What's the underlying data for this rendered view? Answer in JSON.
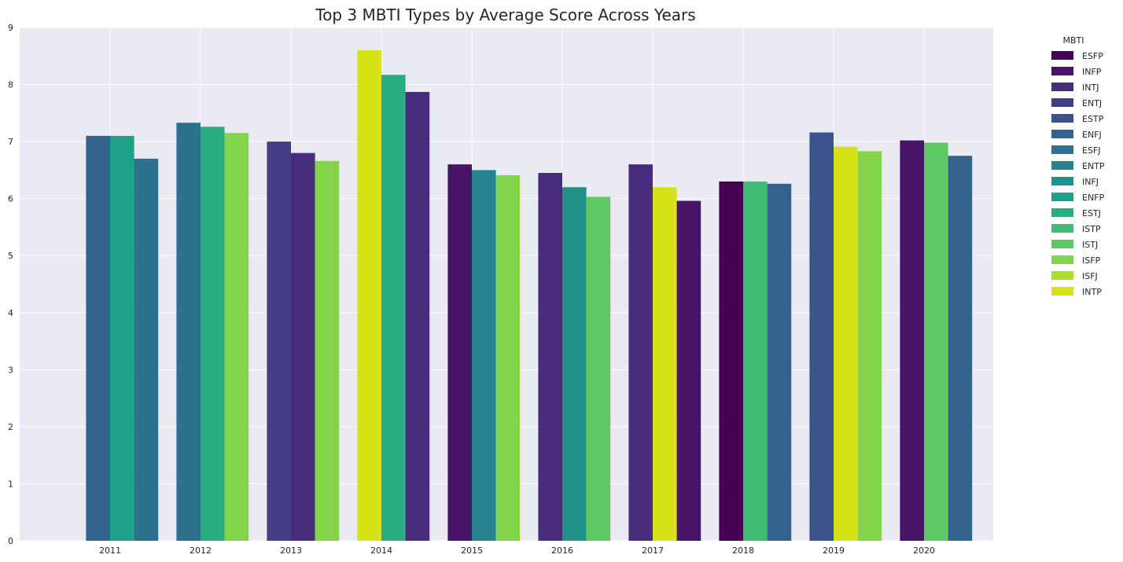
{
  "chart_data": {
    "type": "bar",
    "title": "Top 3 MBTI Types by Average Score Across Years",
    "xlabel": "",
    "ylabel": "",
    "ylim": [
      0,
      9
    ],
    "yticks": [
      "0",
      "1",
      "2",
      "3",
      "4",
      "5",
      "6",
      "7",
      "8",
      "9"
    ],
    "grid": true,
    "legend": {
      "title": "MBTI",
      "placement": "outside-right"
    },
    "types": [
      {
        "name": "ESFP",
        "color": "#440154"
      },
      {
        "name": "INFP",
        "color": "#481467"
      },
      {
        "name": "INTJ",
        "color": "#472d7b"
      },
      {
        "name": "ENTJ",
        "color": "#433e85"
      },
      {
        "name": "ESTP",
        "color": "#3b528b"
      },
      {
        "name": "ENFJ",
        "color": "#33638d"
      },
      {
        "name": "ESFJ",
        "color": "#2c728e"
      },
      {
        "name": "ENTP",
        "color": "#26828e"
      },
      {
        "name": "INFJ",
        "color": "#21918c"
      },
      {
        "name": "ENFP",
        "color": "#1fa088"
      },
      {
        "name": "ESTJ",
        "color": "#28ae80"
      },
      {
        "name": "ISTP",
        "color": "#3fbc73"
      },
      {
        "name": "ISTJ",
        "color": "#5ec962"
      },
      {
        "name": "ISFP",
        "color": "#84d44b"
      },
      {
        "name": "ISFJ",
        "color": "#addc30"
      },
      {
        "name": "INTP",
        "color": "#d8e219"
      }
    ],
    "groups": [
      {
        "year": "2011",
        "bars": [
          {
            "type": "ENFJ",
            "value": 7.1
          },
          {
            "type": "ENFP",
            "value": 7.1
          },
          {
            "type": "ESFJ",
            "value": 6.7
          }
        ]
      },
      {
        "year": "2012",
        "bars": [
          {
            "type": "ESFJ",
            "value": 7.33
          },
          {
            "type": "ESTJ",
            "value": 7.26
          },
          {
            "type": "ISFP",
            "value": 7.15
          }
        ]
      },
      {
        "year": "2013",
        "bars": [
          {
            "type": "ENTJ",
            "value": 7.0
          },
          {
            "type": "INTJ",
            "value": 6.8
          },
          {
            "type": "ISFP",
            "value": 6.66
          }
        ]
      },
      {
        "year": "2014",
        "bars": [
          {
            "type": "INTP",
            "value": 8.6
          },
          {
            "type": "ESTJ",
            "value": 8.17
          },
          {
            "type": "INTJ",
            "value": 7.87
          }
        ]
      },
      {
        "year": "2015",
        "bars": [
          {
            "type": "INFP",
            "value": 6.6
          },
          {
            "type": "ENTP",
            "value": 6.5
          },
          {
            "type": "ISFP",
            "value": 6.41
          }
        ]
      },
      {
        "year": "2016",
        "bars": [
          {
            "type": "INTJ",
            "value": 6.45
          },
          {
            "type": "INFJ",
            "value": 6.2
          },
          {
            "type": "ISTJ",
            "value": 6.03
          }
        ]
      },
      {
        "year": "2017",
        "bars": [
          {
            "type": "INTJ",
            "value": 6.6
          },
          {
            "type": "INTP",
            "value": 6.2
          },
          {
            "type": "INFP",
            "value": 5.96
          }
        ]
      },
      {
        "year": "2018",
        "bars": [
          {
            "type": "ESFP",
            "value": 6.3
          },
          {
            "type": "ISTP",
            "value": 6.3
          },
          {
            "type": "ENFJ",
            "value": 6.26
          }
        ]
      },
      {
        "year": "2019",
        "bars": [
          {
            "type": "ESTP",
            "value": 7.16
          },
          {
            "type": "INTP",
            "value": 6.91
          },
          {
            "type": "ISFP",
            "value": 6.83
          }
        ]
      },
      {
        "year": "2020",
        "bars": [
          {
            "type": "INFP",
            "value": 7.02
          },
          {
            "type": "ISTJ",
            "value": 6.98
          },
          {
            "type": "ENFJ",
            "value": 6.75
          }
        ]
      }
    ]
  }
}
